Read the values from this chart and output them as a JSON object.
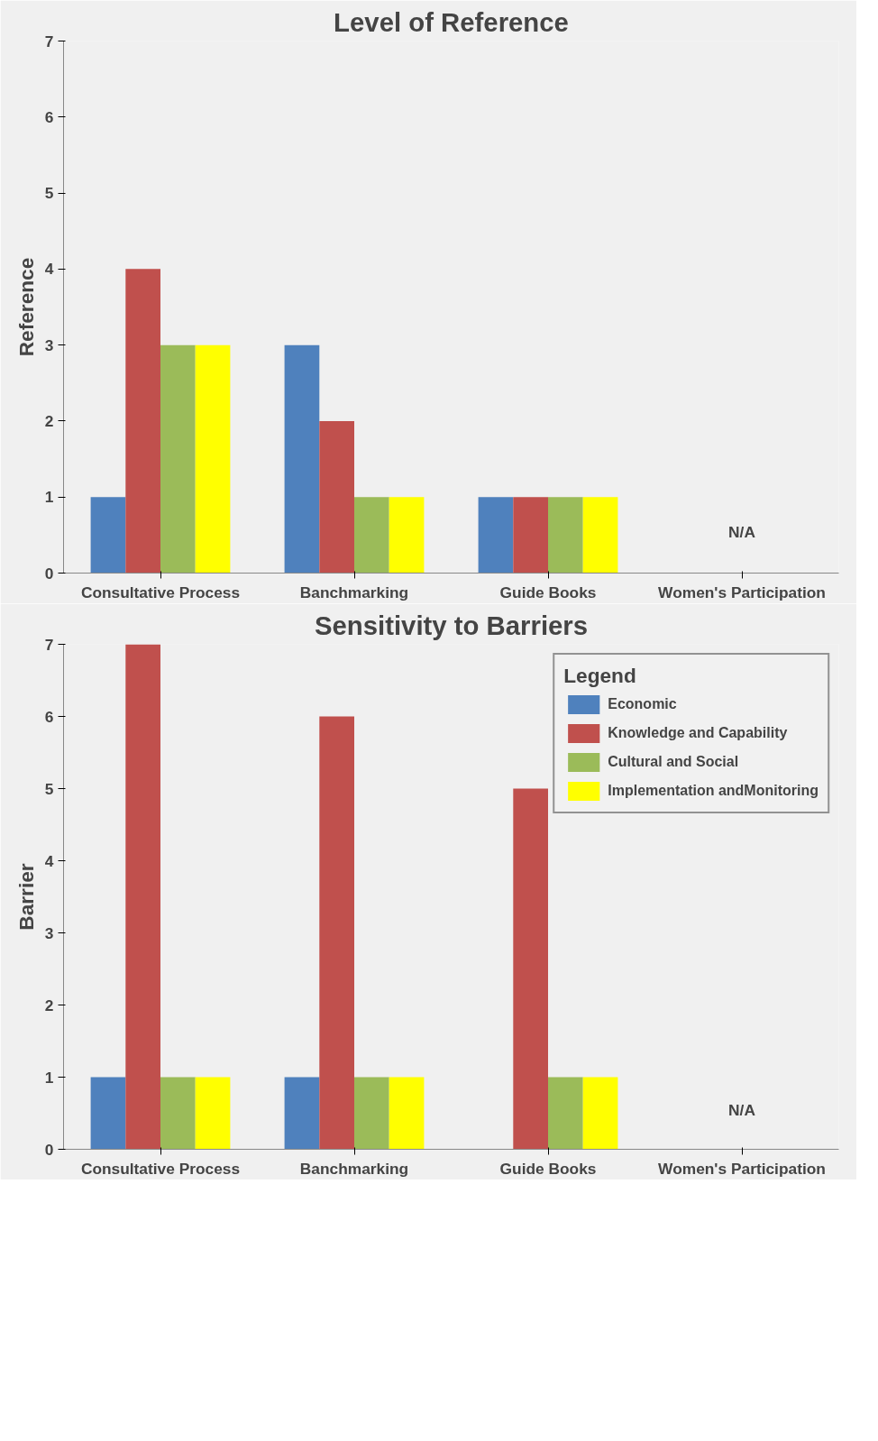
{
  "chart_data": [
    {
      "type": "bar",
      "title": "Level of Reference",
      "ylabel": "Reference",
      "categories": [
        "Consultative Process",
        "Banchmarking",
        "Guide Books",
        "Women's Participation"
      ],
      "ylim": [
        0,
        7
      ],
      "yticks": [
        0,
        1,
        2,
        3,
        4,
        5,
        6,
        7
      ],
      "grid": false,
      "legend": false,
      "series": [
        {
          "color": "#4f81bd",
          "values": [
            1,
            3,
            1,
            null
          ]
        },
        {
          "color": "#c0504d",
          "values": [
            4,
            2,
            1,
            null
          ]
        },
        {
          "color": "#9bbb59",
          "values": [
            3,
            1,
            1,
            null
          ]
        },
        {
          "color": "#ffff00",
          "values": [
            3,
            1,
            1,
            null
          ]
        }
      ],
      "annotations": [
        "N/A"
      ]
    },
    {
      "type": "bar",
      "title": "Sensitivity to Barriers",
      "ylabel": "Barrier",
      "categories": [
        "Consultative Process",
        "Banchmarking",
        "Guide Books",
        "Women's Participation"
      ],
      "ylim": [
        0,
        7
      ],
      "yticks": [
        0,
        1,
        2,
        3,
        4,
        5,
        6,
        7
      ],
      "grid": false,
      "legend": "top right",
      "legend_title": "Legend",
      "series": [
        {
          "name": "Economic",
          "color": "#4f81bd",
          "values": [
            1,
            1,
            null,
            null
          ]
        },
        {
          "name": "Knowledge and Capability",
          "color": "#c0504d",
          "values": [
            7,
            6,
            5,
            null
          ]
        },
        {
          "name": "Cultural and Social",
          "color": "#9bbb59",
          "values": [
            1,
            1,
            1,
            null
          ]
        },
        {
          "name": "Implementation andMonitoring",
          "color": "#ffff00",
          "values": [
            1,
            1,
            1,
            null
          ]
        }
      ],
      "annotations": [
        "N/A"
      ]
    }
  ]
}
